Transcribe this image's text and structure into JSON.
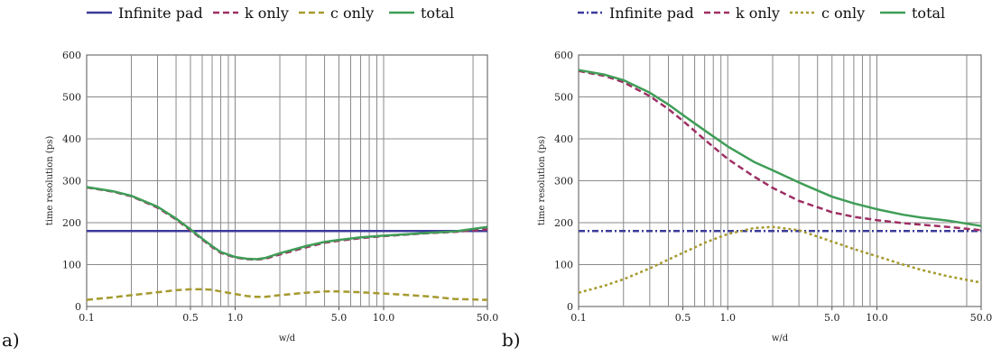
{
  "chart_data": [
    {
      "type": "line",
      "panel_label": "a)",
      "xlabel": "w/d",
      "ylabel": "time resolution (ps)",
      "x_scale": "log",
      "xlim": [
        0.1,
        50.0
      ],
      "ylim": [
        0,
        600
      ],
      "x_ticks": [
        0.1,
        0.5,
        1.0,
        5.0,
        10.0,
        50.0
      ],
      "x_tick_labels": [
        "0.1",
        "0.5",
        "1.0",
        "5.0",
        "10.0",
        "50.0"
      ],
      "y_ticks": [
        0,
        100,
        200,
        300,
        400,
        500,
        600
      ],
      "grid_x": [
        0.2,
        0.3,
        0.4,
        0.5,
        0.6,
        0.7,
        0.8,
        0.9,
        1.0,
        2.0,
        3.0,
        4.0,
        5.0,
        6.0,
        7.0,
        8.0,
        9.0,
        10.0,
        40.0
      ],
      "legend_position": "top",
      "series": [
        {
          "name": "Infinite pad",
          "color": "#3b3b9a",
          "dash": "solid",
          "x": [
            0.1,
            50.0
          ],
          "y": [
            180,
            180
          ]
        },
        {
          "name": "k only",
          "color": "#9e2f63",
          "dash": "dashed",
          "x": [
            0.1,
            0.15,
            0.2,
            0.3,
            0.4,
            0.5,
            0.6,
            0.7,
            0.8,
            1.0,
            1.2,
            1.4,
            1.6,
            2.0,
            3.0,
            4.0,
            5.0,
            7.0,
            10.0,
            15.0,
            20.0,
            30.0,
            50.0
          ],
          "y": [
            284,
            274,
            263,
            236,
            208,
            182,
            160,
            142,
            128,
            117,
            113,
            112,
            114,
            124,
            141,
            152,
            157,
            163,
            168,
            172,
            175,
            178,
            184
          ]
        },
        {
          "name": "c only",
          "color": "#a59a2e",
          "dash": "dashed",
          "x": [
            0.1,
            0.15,
            0.2,
            0.3,
            0.4,
            0.5,
            0.6,
            0.7,
            0.8,
            1.0,
            1.2,
            1.4,
            1.6,
            2.0,
            3.0,
            4.0,
            5.0,
            7.0,
            10.0,
            15.0,
            20.0,
            30.0,
            50.0
          ],
          "y": [
            16,
            22,
            27,
            34,
            39,
            41,
            41,
            40,
            36,
            30,
            25,
            23,
            23,
            27,
            33,
            36,
            36,
            34,
            31,
            27,
            24,
            18,
            16
          ]
        },
        {
          "name": "total",
          "color": "#3f9d57",
          "dash": "solid",
          "x": [
            0.1,
            0.15,
            0.2,
            0.3,
            0.4,
            0.5,
            0.6,
            0.7,
            0.8,
            1.0,
            1.2,
            1.4,
            1.6,
            2.0,
            3.0,
            4.0,
            5.0,
            7.0,
            10.0,
            15.0,
            20.0,
            30.0,
            50.0
          ],
          "y": [
            285,
            275,
            264,
            238,
            210,
            184,
            162,
            144,
            130,
            118,
            114,
            113,
            116,
            127,
            144,
            154,
            159,
            165,
            169,
            173,
            176,
            179,
            190
          ]
        }
      ]
    },
    {
      "type": "line",
      "panel_label": "b)",
      "xlabel": "w/d",
      "ylabel": "time resolution (ps)",
      "x_scale": "log",
      "xlim": [
        0.1,
        50.0
      ],
      "ylim": [
        0,
        600
      ],
      "x_ticks": [
        0.1,
        0.5,
        1.0,
        5.0,
        10.0,
        50.0
      ],
      "x_tick_labels": [
        "0.1",
        "0.5",
        "1.0",
        "5.0",
        "10.0",
        "50.0"
      ],
      "y_ticks": [
        0,
        100,
        200,
        300,
        400,
        500,
        600
      ],
      "grid_x": [
        0.2,
        0.3,
        0.4,
        0.5,
        0.6,
        0.7,
        0.8,
        0.9,
        1.0,
        2.0,
        3.0,
        4.0,
        5.0,
        6.0,
        7.0,
        8.0,
        9.0,
        10.0,
        40.0
      ],
      "legend_position": "top",
      "series": [
        {
          "name": "Infinite pad",
          "color": "#3b3b9a",
          "dash": "dashdot",
          "x": [
            0.1,
            50.0
          ],
          "y": [
            180,
            180
          ]
        },
        {
          "name": "k only",
          "color": "#9e2f63",
          "dash": "dashed",
          "x": [
            0.1,
            0.15,
            0.2,
            0.3,
            0.4,
            0.5,
            0.7,
            1.0,
            1.5,
            2.0,
            3.0,
            5.0,
            7.0,
            10.0,
            15.0,
            20.0,
            30.0,
            50.0
          ],
          "y": [
            562,
            550,
            535,
            502,
            471,
            443,
            398,
            352,
            310,
            283,
            252,
            225,
            214,
            206,
            199,
            195,
            190,
            182
          ]
        },
        {
          "name": "c only",
          "color": "#a59a2e",
          "dash": "dotted",
          "x": [
            0.1,
            0.15,
            0.2,
            0.3,
            0.4,
            0.5,
            0.7,
            1.0,
            1.5,
            2.0,
            3.0,
            5.0,
            7.0,
            10.0,
            15.0,
            20.0,
            30.0,
            50.0
          ],
          "y": [
            33,
            50,
            65,
            91,
            112,
            128,
            152,
            173,
            187,
            190,
            182,
            155,
            137,
            120,
            100,
            87,
            72,
            57
          ]
        },
        {
          "name": "total",
          "color": "#3f9d57",
          "dash": "solid",
          "x": [
            0.1,
            0.15,
            0.2,
            0.3,
            0.4,
            0.5,
            0.7,
            1.0,
            1.5,
            2.0,
            3.0,
            5.0,
            7.0,
            10.0,
            15.0,
            20.0,
            30.0,
            50.0
          ],
          "y": [
            564,
            553,
            540,
            510,
            482,
            457,
            420,
            382,
            345,
            325,
            296,
            262,
            246,
            232,
            219,
            212,
            205,
            192
          ]
        }
      ]
    }
  ]
}
